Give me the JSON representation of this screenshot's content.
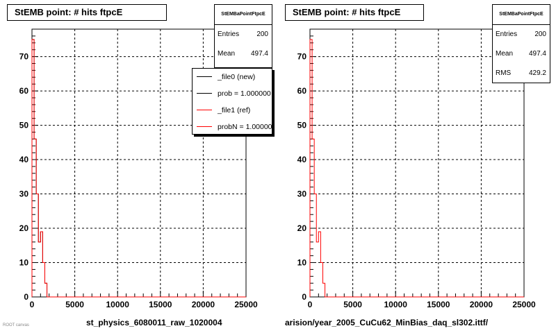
{
  "chart_data": [
    {
      "type": "bar",
      "title": "StEMB point: # hits ftpcE",
      "xlabel": "st_physics_6080011_raw_1020004",
      "ylabel": "",
      "xlim": [
        0,
        25000
      ],
      "ylim": [
        0,
        78
      ],
      "grid": true,
      "x_ticks": [
        "0",
        "5000",
        "10000",
        "15000",
        "20000",
        "25000"
      ],
      "y_ticks": [
        "0",
        "10",
        "20",
        "30",
        "40",
        "50",
        "60",
        "70"
      ],
      "bin_width": 250,
      "series": [
        {
          "name": "_file0 (new)",
          "color": "#000000",
          "values": [
            75,
            46,
            30,
            16,
            19,
            10,
            4,
            0
          ]
        },
        {
          "name": "_file1 (ref)",
          "color": "#ff0000",
          "values": [
            75,
            46,
            30,
            16,
            19,
            10,
            4,
            0
          ]
        }
      ],
      "stats": {
        "name": "StEMBaPointFtpcE",
        "entries_label": "Entries",
        "entries": "200",
        "mean_label": "Mean",
        "mean": "497.4"
      },
      "legend": {
        "placement": "top-right",
        "items": [
          {
            "label": "_file0 (new)",
            "color": "#000000"
          },
          {
            "label": "prob = 1.000000",
            "color": "#000000"
          },
          {
            "label": "_file1 (ref)",
            "color": "#ff0000"
          },
          {
            "label": "probN = 1.000000",
            "color": "#ff0000"
          }
        ]
      }
    },
    {
      "type": "bar",
      "title": "StEMB point: # hits ftpcE",
      "xlabel": "arision/year_2005_CuCu62_MinBias_daq_sl302.ittf/",
      "ylabel": "",
      "xlim": [
        0,
        25000
      ],
      "ylim": [
        0,
        78
      ],
      "grid": true,
      "x_ticks": [
        "0",
        "5000",
        "10000",
        "15000",
        "20000",
        "25000"
      ],
      "y_ticks": [
        "0",
        "10",
        "20",
        "30",
        "40",
        "50",
        "60",
        "70"
      ],
      "bin_width": 250,
      "series": [
        {
          "name": "",
          "color": "#ff0000",
          "values": [
            75,
            46,
            30,
            16,
            19,
            10,
            4,
            0
          ]
        }
      ],
      "stats": {
        "name": "StEMBaPointFtpcE",
        "entries_label": "Entries",
        "entries": "200",
        "mean_label": "Mean",
        "mean": "497.4",
        "rms_label": "RMS",
        "rms": "429.2"
      }
    }
  ],
  "footer": {
    "text": "ROOT canvas"
  }
}
